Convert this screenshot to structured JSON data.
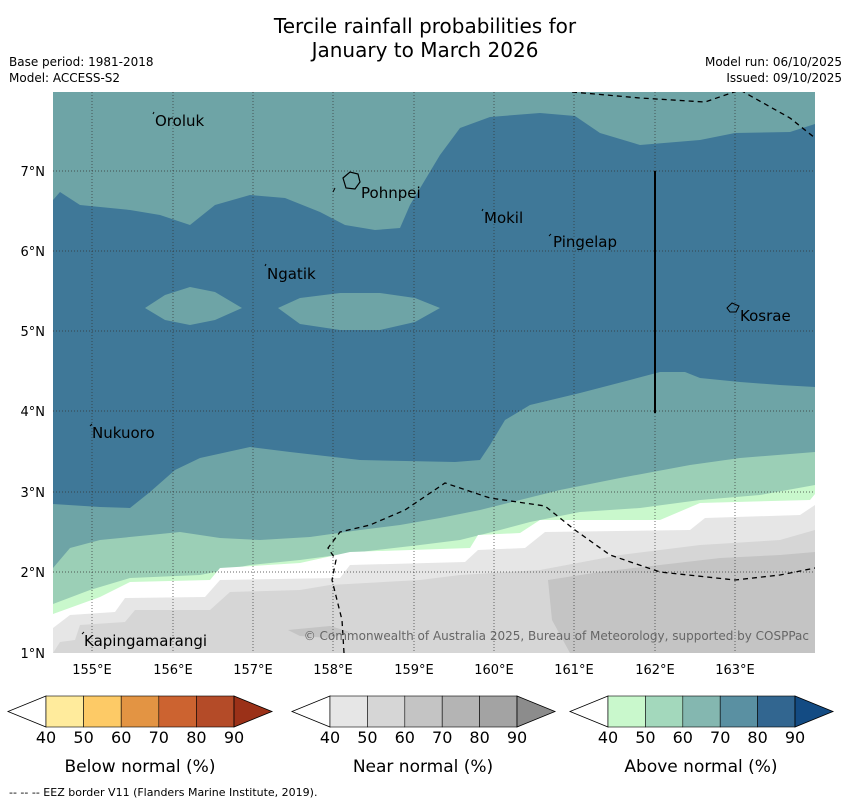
{
  "title": {
    "line1": "Tercile rainfall probabilities for",
    "line2": "January to March 2026"
  },
  "meta": {
    "base_period": "Base period: 1981-2018",
    "model": "Model: ACCESS-S2",
    "model_run": "Model run: 06/10/2025",
    "issued": "Issued: 09/10/2025"
  },
  "map": {
    "lat_labels": [
      "7°N",
      "6°N",
      "5°N",
      "4°N",
      "3°N",
      "2°N",
      "1°N"
    ],
    "lon_labels": [
      "155°E",
      "156°E",
      "157°E",
      "158°E",
      "159°E",
      "160°E",
      "161°E",
      "162°E",
      "163°E"
    ],
    "places": [
      "Oroluk",
      "Pohnpei",
      "Mokil",
      "Pingelap",
      "Ngatik",
      "Kosrae",
      "Nukuoro",
      "Kapingamarangi"
    ],
    "copyright": "© Commonwealth of Australia 2025, Bureau of Meteorology, supported by COSPPac"
  },
  "colorbars": {
    "ticks": [
      "40",
      "50",
      "60",
      "70",
      "80",
      "90"
    ],
    "below": {
      "label": "Below normal (%)",
      "colors": [
        "#ffffff",
        "#ffeb9c",
        "#fdca66",
        "#e39443",
        "#cc6330",
        "#b44b28",
        "#9b3118"
      ]
    },
    "near": {
      "label": "Near normal (%)",
      "colors": [
        "#ffffff",
        "#e6e6e6",
        "#d6d6d6",
        "#c4c4c4",
        "#b4b4b4",
        "#a3a3a3",
        "#8c8c8c"
      ]
    },
    "above": {
      "label": "Above normal (%)",
      "colors": [
        "#ffffff",
        "#c9f8cc",
        "#a3d8bc",
        "#84b7b0",
        "#5a90a2",
        "#326690",
        "#134b83"
      ]
    }
  },
  "footer": {
    "legend_line": "--  --  -- EEZ border V11 (Flanders Marine Institute, 2019)."
  }
}
